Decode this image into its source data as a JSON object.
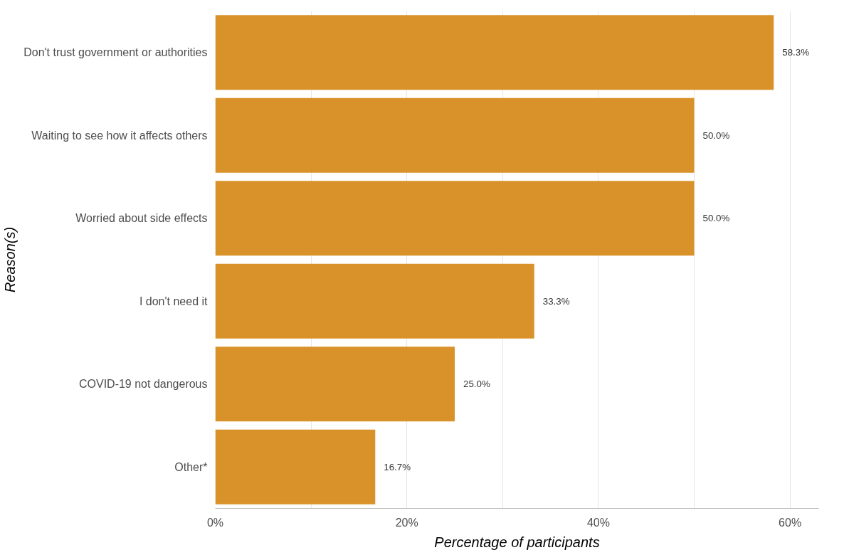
{
  "chart_data": {
    "type": "bar",
    "orientation": "horizontal",
    "xlabel": "Percentage of participants",
    "ylabel": "Reason(s)",
    "categories": [
      "Don't trust government or authorities",
      "Waiting to see how it affects others",
      "Worried about side effects",
      "I don't need it",
      "COVID-19 not dangerous",
      "Other*"
    ],
    "values": [
      58.3,
      50.0,
      50.0,
      33.3,
      25.0,
      16.7
    ],
    "value_labels": [
      "58.3%",
      "50.0%",
      "50.0%",
      "33.3%",
      "25.0%",
      "16.7%"
    ],
    "color": "#d9922a",
    "xlim": [
      0,
      63
    ],
    "xticks": [
      {
        "value": 0,
        "label": "0%"
      },
      {
        "value": 10,
        "label": null
      },
      {
        "value": 20,
        "label": "20%"
      },
      {
        "value": 30,
        "label": null
      },
      {
        "value": 40,
        "label": "40%"
      },
      {
        "value": 50,
        "label": null
      },
      {
        "value": 60,
        "label": "60%"
      }
    ],
    "grid": "x"
  }
}
